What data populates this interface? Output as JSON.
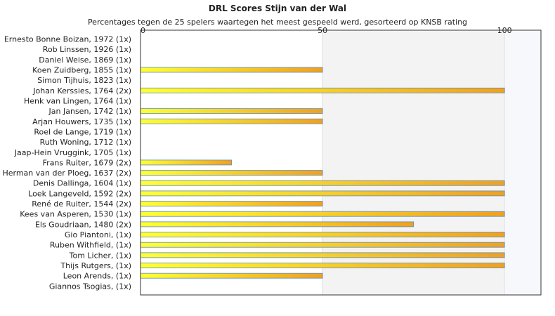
{
  "chart_data": {
    "type": "bar",
    "orientation": "horizontal",
    "title": "DRL Scores Stijn van der Wal",
    "subtitle": "Percentages tegen de 25 spelers waartegen het meest gespeeld werd, gesorteerd op KNSB rating",
    "xlim": [
      0,
      110
    ],
    "xticks": [
      "0",
      "50",
      "100"
    ],
    "grid": false,
    "colors": {
      "bar_start": "#ffff33",
      "bar_end": "#f0a020",
      "bar_border": "#5b8dbb",
      "band_light": "#f3f3f3",
      "band_lighter": "#f7f8fc",
      "plot_border": "#333333"
    },
    "categories": [
      "Ernesto Bonne Boizan, 1972 (1x)",
      "Rob Linssen, 1926 (1x)",
      "Daniel Weise, 1869 (1x)",
      "Koen Zuidberg, 1855 (1x)",
      "Simon Tijhuis, 1823 (1x)",
      "Johan Kerssies, 1764 (2x)",
      "Henk van Lingen, 1764 (1x)",
      "Jan Jansen, 1742 (1x)",
      "Arjan Houwers, 1735 (1x)",
      "Roel de Lange, 1719 (1x)",
      "Ruth Woning, 1712 (1x)",
      "Jaap-Hein Vruggink, 1705 (1x)",
      "Frans Ruiter, 1679 (2x)",
      "Herman van der Ploeg, 1637 (2x)",
      "Denis Dallinga, 1604 (1x)",
      "Loek Langeveld, 1592 (2x)",
      "René de Ruiter, 1544 (2x)",
      "Kees van Asperen, 1530 (1x)",
      "Els Goudriaan, 1480 (2x)",
      "Gio Piantoni,  (1x)",
      "Ruben Withfield,  (1x)",
      "Tom Licher,  (1x)",
      "Thijs Rutgers,  (1x)",
      "Leon Arends,  (1x)",
      "Giannos Tsogias,  (1x)"
    ],
    "values": [
      0,
      0,
      0,
      50,
      0,
      100,
      0,
      50,
      50,
      0,
      0,
      0,
      25,
      50,
      100,
      100,
      50,
      100,
      75,
      100,
      100,
      100,
      100,
      50,
      0
    ]
  }
}
